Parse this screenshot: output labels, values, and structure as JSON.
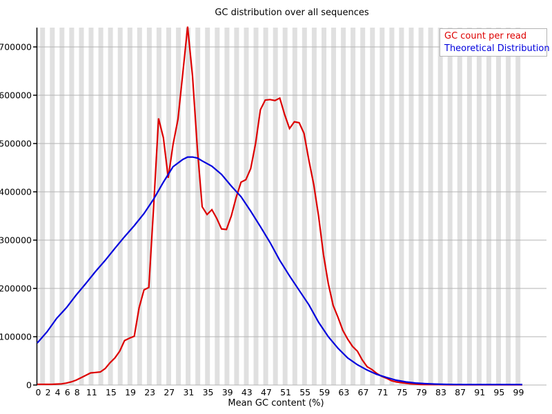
{
  "chart_data": {
    "type": "line",
    "title": "GC distribution over all sequences",
    "xlabel": "Mean GC content (%)",
    "ylabel": "",
    "xlim": [
      0,
      100
    ],
    "ylim": [
      0,
      700000
    ],
    "x_tick_values": [
      0,
      2,
      4,
      6,
      8,
      11,
      15,
      19,
      23,
      27,
      31,
      35,
      39,
      43,
      47,
      51,
      55,
      59,
      63,
      67,
      71,
      75,
      79,
      83,
      87,
      91,
      95,
      99
    ],
    "x_tick_labels": [
      "0",
      "2",
      "4",
      "6",
      "8",
      "11",
      "15",
      "19",
      "23",
      "27",
      "31",
      "35",
      "39",
      "43",
      "47",
      "51",
      "55",
      "59",
      "63",
      "67",
      "71",
      "75",
      "79",
      "83",
      "87",
      "91",
      "95",
      "99"
    ],
    "y_tick_values": [
      0,
      100000,
      200000,
      300000,
      400000,
      500000,
      600000,
      700000
    ],
    "y_tick_labels": [
      "0",
      "100000",
      "200000",
      "300000",
      "400000",
      "500000",
      "600000",
      "700000"
    ],
    "grid": "horizontal gridlines on, alternating vertical background stripes every 2 x-units",
    "legend_position": "top-right",
    "series": [
      {
        "name": "GC count per read",
        "color": "#dd0000",
        "points": [
          [
            0,
            1500
          ],
          [
            1,
            1500
          ],
          [
            2,
            1500
          ],
          [
            3,
            1500
          ],
          [
            4,
            2000
          ],
          [
            5,
            2500
          ],
          [
            6,
            4000
          ],
          [
            7,
            6500
          ],
          [
            8,
            10000
          ],
          [
            9,
            15000
          ],
          [
            10,
            20000
          ],
          [
            11,
            25000
          ],
          [
            12,
            26000
          ],
          [
            13,
            27000
          ],
          [
            14,
            34000
          ],
          [
            15,
            46000
          ],
          [
            16,
            56000
          ],
          [
            17,
            70000
          ],
          [
            18,
            92000
          ],
          [
            19,
            97000
          ],
          [
            20,
            101000
          ],
          [
            21,
            160000
          ],
          [
            22,
            197000
          ],
          [
            23,
            202000
          ],
          [
            24,
            370000
          ],
          [
            25,
            552000
          ],
          [
            26,
            512000
          ],
          [
            27,
            429000
          ],
          [
            28,
            498000
          ],
          [
            29,
            550000
          ],
          [
            30,
            645000
          ],
          [
            31,
            742000
          ],
          [
            32,
            640000
          ],
          [
            33,
            490000
          ],
          [
            34,
            369000
          ],
          [
            35,
            353000
          ],
          [
            36,
            363000
          ],
          [
            37,
            345000
          ],
          [
            38,
            323000
          ],
          [
            39,
            322000
          ],
          [
            40,
            350000
          ],
          [
            41,
            388000
          ],
          [
            42,
            420000
          ],
          [
            43,
            425000
          ],
          [
            44,
            448000
          ],
          [
            45,
            500000
          ],
          [
            46,
            570000
          ],
          [
            47,
            590000
          ],
          [
            48,
            591000
          ],
          [
            49,
            589000
          ],
          [
            50,
            594000
          ],
          [
            51,
            560000
          ],
          [
            52,
            531000
          ],
          [
            53,
            545000
          ],
          [
            54,
            543000
          ],
          [
            55,
            521000
          ],
          [
            56,
            465000
          ],
          [
            57,
            415000
          ],
          [
            58,
            350000
          ],
          [
            59,
            270000
          ],
          [
            60,
            210000
          ],
          [
            61,
            165000
          ],
          [
            62,
            140000
          ],
          [
            63,
            113000
          ],
          [
            64,
            95000
          ],
          [
            65,
            80000
          ],
          [
            66,
            70000
          ],
          [
            67,
            52000
          ],
          [
            68,
            38000
          ],
          [
            69,
            32000
          ],
          [
            70,
            24000
          ],
          [
            71,
            18000
          ],
          [
            72,
            14000
          ],
          [
            73,
            9000
          ],
          [
            74,
            6500
          ],
          [
            75,
            5000
          ],
          [
            76,
            3500
          ],
          [
            77,
            2500
          ],
          [
            78,
            1800
          ],
          [
            79,
            1200
          ],
          [
            80,
            1000
          ],
          [
            82,
            800
          ],
          [
            85,
            600
          ],
          [
            90,
            500
          ],
          [
            95,
            500
          ],
          [
            100,
            500
          ]
        ]
      },
      {
        "name": "Theoretical Distribution",
        "color": "#0000dd",
        "points": [
          [
            0,
            87000
          ],
          [
            2,
            110000
          ],
          [
            4,
            138000
          ],
          [
            6,
            160000
          ],
          [
            8,
            186000
          ],
          [
            10,
            210000
          ],
          [
            12,
            235000
          ],
          [
            14,
            258000
          ],
          [
            16,
            283000
          ],
          [
            18,
            307000
          ],
          [
            20,
            330000
          ],
          [
            22,
            355000
          ],
          [
            24,
            385000
          ],
          [
            26,
            420000
          ],
          [
            28,
            452000
          ],
          [
            30,
            467000
          ],
          [
            31,
            472000
          ],
          [
            32,
            472000
          ],
          [
            33,
            470000
          ],
          [
            34,
            464000
          ],
          [
            36,
            453000
          ],
          [
            38,
            436000
          ],
          [
            40,
            412000
          ],
          [
            42,
            390000
          ],
          [
            44,
            360000
          ],
          [
            46,
            328000
          ],
          [
            48,
            295000
          ],
          [
            50,
            258000
          ],
          [
            52,
            226000
          ],
          [
            54,
            196000
          ],
          [
            56,
            166000
          ],
          [
            58,
            130000
          ],
          [
            60,
            100000
          ],
          [
            62,
            76000
          ],
          [
            64,
            56000
          ],
          [
            66,
            42000
          ],
          [
            68,
            31000
          ],
          [
            70,
            22000
          ],
          [
            72,
            15500
          ],
          [
            74,
            10000
          ],
          [
            76,
            6500
          ],
          [
            78,
            4200
          ],
          [
            80,
            2800
          ],
          [
            82,
            2000
          ],
          [
            84,
            1500
          ],
          [
            86,
            1200
          ],
          [
            88,
            1000
          ],
          [
            90,
            1000
          ],
          [
            92,
            1000
          ],
          [
            94,
            1000
          ],
          [
            96,
            1000
          ],
          [
            98,
            1000
          ],
          [
            100,
            1000
          ]
        ]
      }
    ],
    "colors": {
      "background_stripe": "#e0e0e0",
      "gridline": "#b3b3b3",
      "axis": "#000000",
      "legend_border": "#b3b3b3",
      "text": "#000000"
    }
  }
}
